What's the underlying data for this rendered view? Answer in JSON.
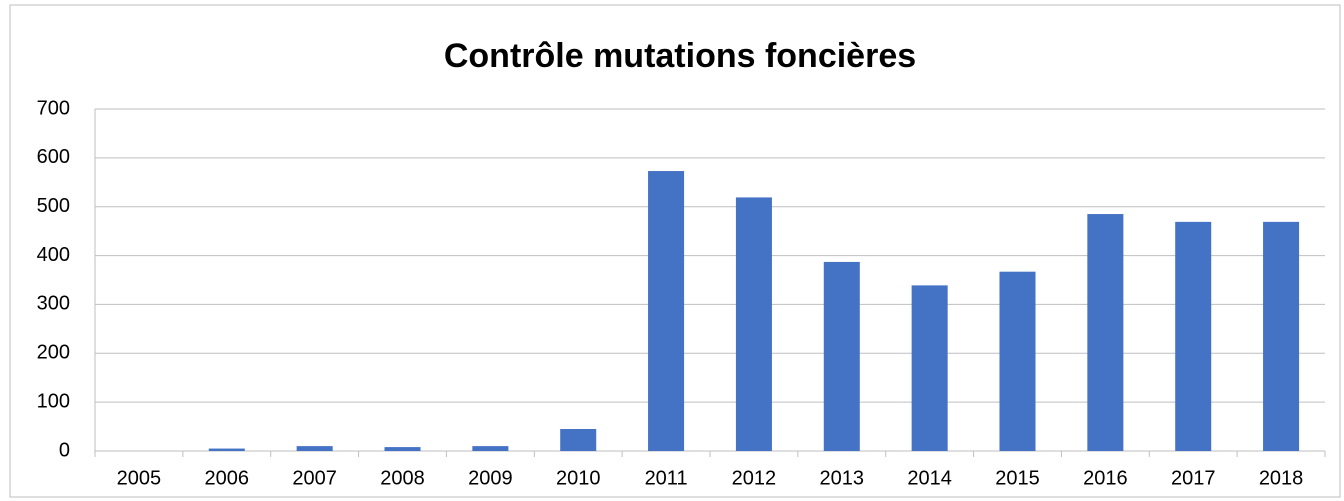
{
  "chart_data": {
    "type": "bar",
    "title": "Contrôle mutations foncières",
    "categories": [
      "2005",
      "2006",
      "2007",
      "2008",
      "2009",
      "2010",
      "2011",
      "2012",
      "2013",
      "2014",
      "2015",
      "2016",
      "2017",
      "2018"
    ],
    "values": [
      0,
      5,
      10,
      8,
      10,
      45,
      573,
      519,
      387,
      339,
      367,
      485,
      469,
      469
    ],
    "color": "#4472c4",
    "ylim": [
      0,
      700
    ],
    "yticks": [
      0,
      100,
      200,
      300,
      400,
      500,
      600,
      700
    ],
    "grid": true
  }
}
